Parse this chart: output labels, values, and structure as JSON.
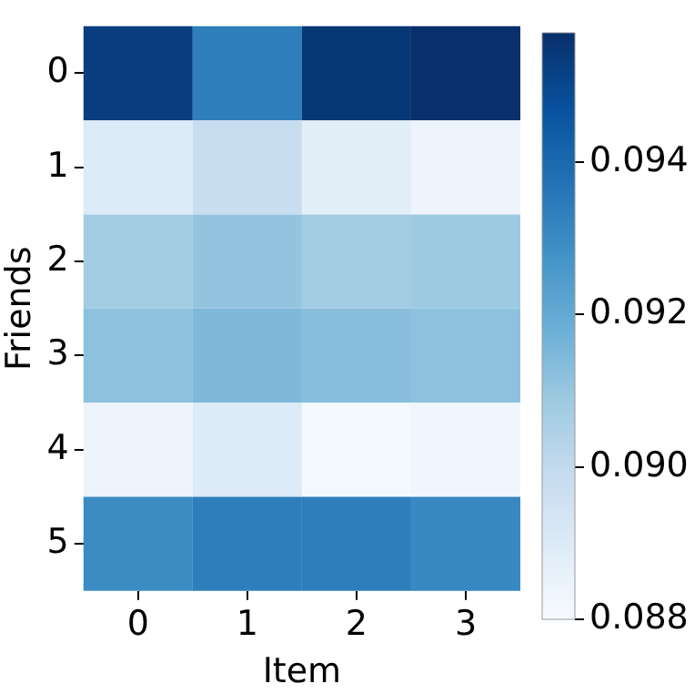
{
  "chart_data": {
    "type": "heatmap",
    "xlabel": "Item",
    "ylabel": "Friends",
    "categories": [
      "0",
      "1",
      "2",
      "3"
    ],
    "y_categories": [
      "0",
      "1",
      "2",
      "3",
      "4",
      "5"
    ],
    "cells": [
      [
        0.0953,
        0.0934,
        0.0955,
        0.0957
      ],
      [
        0.089,
        0.0898,
        0.0888,
        0.0884
      ],
      [
        0.0908,
        0.0911,
        0.0908,
        0.0909
      ],
      [
        0.0912,
        0.0915,
        0.0913,
        0.0912
      ],
      [
        0.0884,
        0.089,
        0.0881,
        0.0883
      ],
      [
        0.093,
        0.0934,
        0.0934,
        0.0931
      ]
    ],
    "clim": [
      0.088,
      0.0957
    ],
    "cticks": [
      0.088,
      {
        "value": 0.09,
        "label": "0.090"
      },
      0.092,
      0.094
    ]
  }
}
